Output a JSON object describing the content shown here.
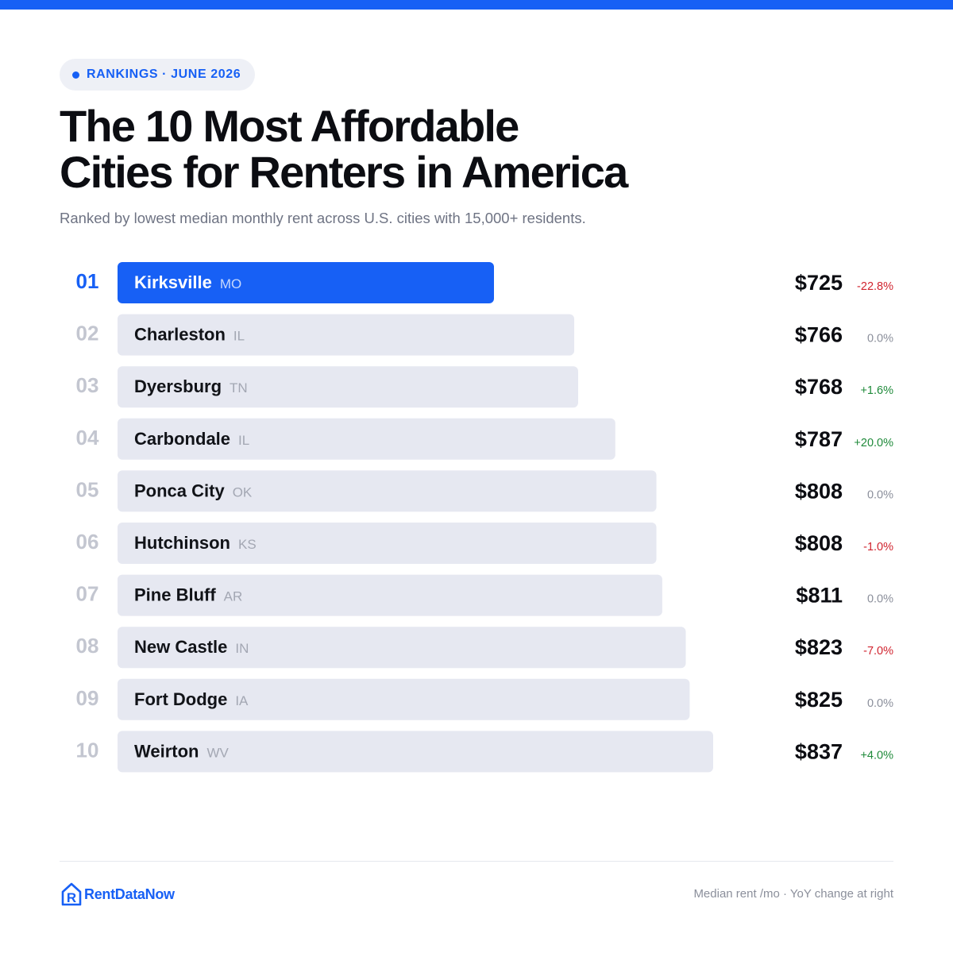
{
  "badge": {
    "text": "RANKINGS · JUNE 2026"
  },
  "header": {
    "title_line1": "The 10 Most Affordable",
    "title_line2": "Cities for Renters in America",
    "subtitle": "Ranked by lowest median monthly rent across U.S. cities with 15,000+ residents."
  },
  "colors": {
    "accent": "#1760f5",
    "bar": "#e6e8f1",
    "negative": "#d1242f",
    "positive": "#1f8a3a",
    "neutral": "#8b8f9b",
    "rank_muted": "#c3c6d0"
  },
  "chart_data": {
    "type": "bar",
    "orientation": "horizontal",
    "title": "The 10 Most Affordable Cities for Renters in America",
    "ranks": [
      "01",
      "02",
      "03",
      "04",
      "05",
      "06",
      "07",
      "08",
      "09",
      "10"
    ],
    "categories": [
      "Kirksville",
      "Charleston",
      "Dyersburg",
      "Carbondale",
      "Ponca City",
      "Hutchinson",
      "Pine Bluff",
      "New Castle",
      "Fort Dodge",
      "Weirton"
    ],
    "states": [
      "MO",
      "IL",
      "TN",
      "IL",
      "OK",
      "KS",
      "AR",
      "IN",
      "IA",
      "WV"
    ],
    "values": [
      725,
      766,
      768,
      787,
      808,
      808,
      811,
      823,
      825,
      837
    ],
    "value_labels": [
      "$725",
      "$766",
      "$768",
      "$787",
      "$808",
      "$808",
      "$811",
      "$823",
      "$825",
      "$837"
    ],
    "yoy_change": [
      -22.8,
      0.0,
      1.6,
      20.0,
      0.0,
      -1.0,
      0.0,
      -7.0,
      0.0,
      4.0
    ],
    "yoy_labels": [
      "-22.8%",
      "0.0%",
      "+1.6%",
      "+20.0%",
      "0.0%",
      "-1.0%",
      "0.0%",
      "-7.0%",
      "0.0%",
      "+4.0%"
    ],
    "highlighted_index": 0
  },
  "brand": {
    "name": "RentDataNow",
    "logo_letter": "R"
  },
  "footer": {
    "note": "Median rent /mo · YoY change at right"
  }
}
